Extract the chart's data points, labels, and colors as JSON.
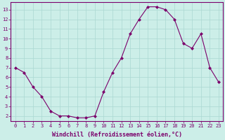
{
  "x": [
    0,
    1,
    2,
    3,
    4,
    5,
    6,
    7,
    8,
    9,
    10,
    11,
    12,
    13,
    14,
    15,
    16,
    17,
    18,
    19,
    20,
    21,
    22,
    23
  ],
  "y": [
    7.0,
    6.5,
    5.0,
    4.0,
    2.5,
    2.0,
    2.0,
    1.8,
    1.8,
    2.0,
    4.5,
    6.5,
    8.0,
    10.5,
    12.0,
    13.3,
    13.3,
    13.0,
    12.0,
    9.5,
    9.0,
    10.5,
    7.0,
    5.5
  ],
  "line_color": "#7B006B",
  "marker": "D",
  "marker_size": 2.0,
  "bg_color": "#cceee8",
  "grid_color": "#aad8d2",
  "xlabel": "Windchill (Refroidissement éolien,°C)",
  "xlabel_color": "#7B006B",
  "tick_color": "#7B006B",
  "xlim": [
    -0.5,
    23.5
  ],
  "ylim": [
    1.5,
    13.8
  ],
  "yticks": [
    2,
    3,
    4,
    5,
    6,
    7,
    8,
    9,
    10,
    11,
    12,
    13
  ],
  "xticks": [
    0,
    1,
    2,
    3,
    4,
    5,
    6,
    7,
    8,
    9,
    10,
    11,
    12,
    13,
    14,
    15,
    16,
    17,
    18,
    19,
    20,
    21,
    22,
    23
  ],
  "title_fontsize": 5,
  "tick_fontsize": 5,
  "xlabel_fontsize": 6
}
